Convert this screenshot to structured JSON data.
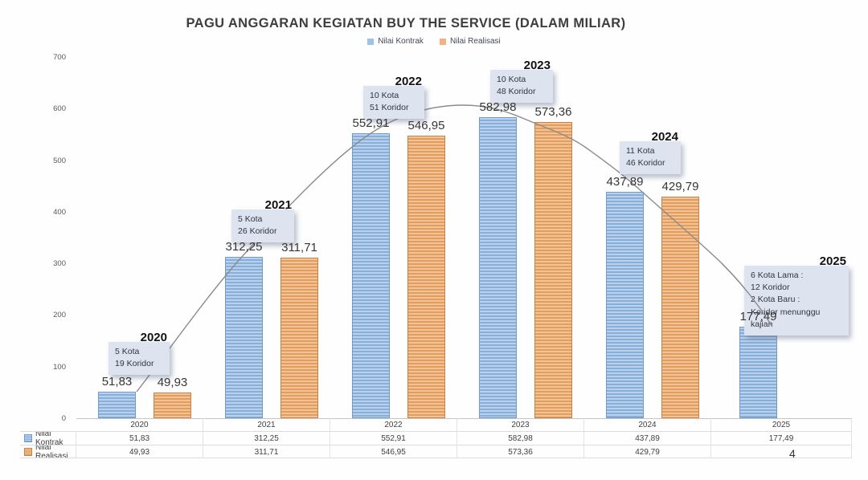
{
  "title": "PAGU ANGGARAN KEGIATAN BUY THE SERVICE (DALAM MILIAR)",
  "page_number": "4",
  "legend": [
    {
      "label": "Nilai Kontrak",
      "color": "#9dc3e6"
    },
    {
      "label": "Nilai Realisasi",
      "color": "#f4b183"
    }
  ],
  "chart_data": {
    "type": "bar",
    "title": "PAGU ANGGARAN KEGIATAN BUY THE SERVICE (DALAM MILIAR)",
    "categories": [
      "2020",
      "2021",
      "2022",
      "2023",
      "2024",
      "2025"
    ],
    "series": [
      {
        "name": "Nilai Kontrak",
        "color": "#9dc3e6",
        "values": [
          51.83,
          312.25,
          552.91,
          582.98,
          437.89,
          177.49
        ],
        "display": [
          "51,83",
          "312,25",
          "552,91",
          "582,98",
          "437,89",
          "177,49"
        ]
      },
      {
        "name": "Nilai Realisasi",
        "color": "#f4b183",
        "values": [
          49.93,
          311.71,
          546.95,
          573.36,
          429.79,
          null
        ],
        "display": [
          "49,93",
          "311,71",
          "546,95",
          "573,36",
          "429,79",
          ""
        ]
      }
    ],
    "xlabel": "",
    "ylabel": "",
    "ylim": [
      0,
      700
    ],
    "yticks": [
      0,
      100,
      200,
      300,
      400,
      500,
      600,
      700
    ],
    "grid": false,
    "legend_position": "top",
    "trendline": "smooth gray curve through Nilai Kontrak bar tops, peak between 2022 and 2023",
    "annotations": [
      {
        "year": "2020",
        "lines": [
          "5 Kota",
          "19 Koridor"
        ]
      },
      {
        "year": "2021",
        "lines": [
          "5 Kota",
          "26 Koridor"
        ]
      },
      {
        "year": "2022",
        "lines": [
          "10 Kota",
          "51 Koridor"
        ]
      },
      {
        "year": "2023",
        "lines": [
          "10 Kota",
          "48 Koridor"
        ]
      },
      {
        "year": "2024",
        "lines": [
          "11 Kota",
          "46 Koridor"
        ]
      },
      {
        "year": "2025",
        "lines": [
          "6 Kota Lama :",
          "12 Koridor",
          "2 Kota Baru :",
          "Koridor menunggu kajian"
        ]
      }
    ],
    "table": {
      "row_labels": [
        "Nilai Kontrak",
        "Nilai Realisasi"
      ],
      "columns": [
        "2020",
        "2021",
        "2022",
        "2023",
        "2024",
        "2025"
      ],
      "rows": [
        [
          "51,83",
          "312,25",
          "552,91",
          "582,98",
          "437,89",
          "177,49"
        ],
        [
          "49,93",
          "311,71",
          "546,95",
          "573,36",
          "429,79",
          ""
        ]
      ]
    }
  }
}
